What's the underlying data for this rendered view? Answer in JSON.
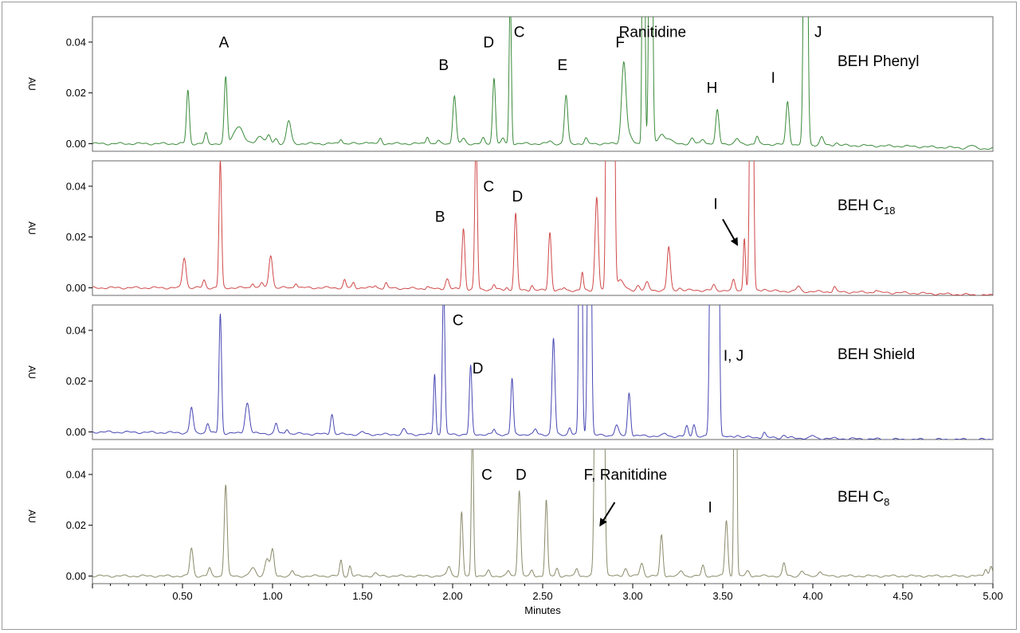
{
  "chart_data": {
    "type": "line",
    "xlabel": "Minutes",
    "x_ticks": [
      "0.50",
      "1.00",
      "1.50",
      "2.00",
      "2.50",
      "3.00",
      "3.50",
      "4.00",
      "4.50",
      "5.00"
    ],
    "xlim": [
      0.0,
      5.0
    ],
    "panels": [
      {
        "column_label": "BEH Phenyl",
        "column_sub": "",
        "ylabel": "AU",
        "y_ticks": [
          "0.00",
          "0.02",
          "0.04"
        ],
        "ylim": [
          -0.003,
          0.05
        ],
        "color": "#3a8a3a",
        "baseline": [
          [
            0.0,
            0.0
          ],
          [
            1.5,
            0.0
          ],
          [
            2.5,
            0.0
          ],
          [
            3.5,
            0.0
          ],
          [
            4.5,
            -0.001
          ],
          [
            5.0,
            -0.002
          ]
        ],
        "peaks": [
          [
            0.53,
            0.021,
            0.008
          ],
          [
            0.63,
            0.004,
            0.008
          ],
          [
            0.74,
            0.026,
            0.008
          ],
          [
            0.81,
            0.007,
            0.025
          ],
          [
            0.93,
            0.003,
            0.02
          ],
          [
            0.98,
            0.003,
            0.01
          ],
          [
            1.02,
            0.002,
            0.01
          ],
          [
            1.09,
            0.009,
            0.012
          ],
          [
            1.38,
            0.002,
            0.008
          ],
          [
            1.52,
            0.001,
            0.01
          ],
          [
            1.6,
            0.002,
            0.008
          ],
          [
            1.86,
            0.003,
            0.008
          ],
          [
            1.92,
            0.001,
            0.008
          ],
          [
            2.01,
            0.019,
            0.009
          ],
          [
            2.06,
            0.002,
            0.01
          ],
          [
            2.17,
            0.002,
            0.008
          ],
          [
            2.23,
            0.026,
            0.008
          ],
          [
            2.28,
            0.002,
            0.008
          ],
          [
            2.32,
            0.06,
            0.006
          ],
          [
            2.54,
            0.001,
            0.01
          ],
          [
            2.63,
            0.019,
            0.009
          ],
          [
            2.74,
            0.002,
            0.008
          ],
          [
            2.95,
            0.03,
            0.012
          ],
          [
            2.97,
            0.004,
            0.02
          ],
          [
            3.06,
            0.2,
            0.006
          ],
          [
            3.1,
            0.2,
            0.008
          ],
          [
            3.16,
            0.004,
            0.015
          ],
          [
            3.2,
            0.002,
            0.015
          ],
          [
            3.33,
            0.002,
            0.01
          ],
          [
            3.39,
            0.002,
            0.01
          ],
          [
            3.47,
            0.013,
            0.009
          ],
          [
            3.58,
            0.002,
            0.01
          ],
          [
            3.69,
            0.003,
            0.008
          ],
          [
            3.86,
            0.017,
            0.009
          ],
          [
            3.96,
            0.2,
            0.009
          ],
          [
            4.05,
            0.003,
            0.01
          ],
          [
            4.13,
            0.001,
            0.01
          ],
          [
            4.88,
            0.001,
            0.015
          ]
        ],
        "labels": [
          {
            "text": "A",
            "x": 0.73,
            "y": 0.038
          },
          {
            "text": "B",
            "x": 1.95,
            "y": 0.029
          },
          {
            "text": "D",
            "x": 2.2,
            "y": 0.038
          },
          {
            "text": "C",
            "x": 2.37,
            "y": 0.042
          },
          {
            "text": "E",
            "x": 2.61,
            "y": 0.029
          },
          {
            "text": "F",
            "x": 2.93,
            "y": 0.038
          },
          {
            "text": "Ranitidine",
            "x": 3.11,
            "y": 0.042
          },
          {
            "text": "H",
            "x": 3.44,
            "y": 0.02
          },
          {
            "text": "I",
            "x": 3.78,
            "y": 0.024
          },
          {
            "text": "J",
            "x": 4.03,
            "y": 0.042
          }
        ]
      },
      {
        "column_label": "BEH C",
        "column_sub": "18",
        "ylabel": "AU",
        "y_ticks": [
          "0.00",
          "0.02",
          "0.04"
        ],
        "ylim": [
          -0.003,
          0.05
        ],
        "color": "#d04848",
        "baseline": [
          [
            0.0,
            0.0
          ],
          [
            1.5,
            0.0
          ],
          [
            2.5,
            -0.001
          ],
          [
            3.5,
            -0.001
          ],
          [
            4.5,
            -0.002
          ],
          [
            5.0,
            -0.003
          ]
        ],
        "peaks": [
          [
            0.51,
            0.012,
            0.01
          ],
          [
            0.62,
            0.003,
            0.008
          ],
          [
            0.71,
            0.05,
            0.007
          ],
          [
            0.89,
            0.002,
            0.008
          ],
          [
            0.94,
            0.002,
            0.008
          ],
          [
            0.99,
            0.013,
            0.01
          ],
          [
            1.13,
            0.002,
            0.008
          ],
          [
            1.4,
            0.003,
            0.007
          ],
          [
            1.45,
            0.002,
            0.007
          ],
          [
            1.57,
            0.001,
            0.007
          ],
          [
            1.63,
            0.002,
            0.007
          ],
          [
            1.86,
            0.001,
            0.007
          ],
          [
            1.97,
            0.004,
            0.01
          ],
          [
            2.06,
            0.024,
            0.008
          ],
          [
            2.13,
            0.06,
            0.007
          ],
          [
            2.23,
            0.002,
            0.007
          ],
          [
            2.3,
            0.001,
            0.007
          ],
          [
            2.35,
            0.03,
            0.008
          ],
          [
            2.44,
            0.002,
            0.007
          ],
          [
            2.54,
            0.023,
            0.008
          ],
          [
            2.62,
            0.001,
            0.007
          ],
          [
            2.72,
            0.007,
            0.006
          ],
          [
            2.8,
            0.037,
            0.009
          ],
          [
            2.86,
            0.2,
            0.007
          ],
          [
            2.89,
            0.2,
            0.008
          ],
          [
            2.93,
            0.004,
            0.02
          ],
          [
            3.03,
            0.002,
            0.01
          ],
          [
            3.08,
            0.003,
            0.01
          ],
          [
            3.2,
            0.017,
            0.009
          ],
          [
            3.26,
            0.001,
            0.01
          ],
          [
            3.45,
            0.002,
            0.008
          ],
          [
            3.56,
            0.004,
            0.008
          ],
          [
            3.62,
            0.021,
            0.006
          ],
          [
            3.66,
            0.2,
            0.008
          ],
          [
            3.73,
            0.001,
            0.01
          ],
          [
            3.92,
            0.002,
            0.01
          ],
          [
            4.12,
            0.002,
            0.008
          ],
          [
            4.35,
            0.001,
            0.008
          ]
        ],
        "labels": [
          {
            "text": "B",
            "x": 1.93,
            "y": 0.026
          },
          {
            "text": "C",
            "x": 2.2,
            "y": 0.038
          },
          {
            "text": "D",
            "x": 2.36,
            "y": 0.034
          },
          {
            "text": "I",
            "x": 3.46,
            "y": 0.031
          }
        ],
        "arrows": [
          {
            "x1": 3.5,
            "y1": 0.027,
            "x2": 3.58,
            "y2": 0.017
          }
        ]
      },
      {
        "column_label": "BEH Shield",
        "column_sub": "",
        "ylabel": "AU",
        "y_ticks": [
          "0.00",
          "0.02",
          "0.04"
        ],
        "ylim": [
          -0.003,
          0.05
        ],
        "color": "#4646b4",
        "baseline": [
          [
            0.0,
            0.0
          ],
          [
            1.5,
            -0.001
          ],
          [
            2.5,
            -0.001
          ],
          [
            3.5,
            -0.002
          ],
          [
            4.5,
            -0.003
          ],
          [
            5.0,
            -0.003
          ]
        ],
        "peaks": [
          [
            0.55,
            0.01,
            0.009
          ],
          [
            0.64,
            0.004,
            0.008
          ],
          [
            0.71,
            0.047,
            0.007
          ],
          [
            0.86,
            0.012,
            0.012
          ],
          [
            1.02,
            0.004,
            0.008
          ],
          [
            1.08,
            0.002,
            0.008
          ],
          [
            1.33,
            0.008,
            0.008
          ],
          [
            1.5,
            0.001,
            0.01
          ],
          [
            1.73,
            0.002,
            0.01
          ],
          [
            1.9,
            0.024,
            0.006
          ],
          [
            1.95,
            0.06,
            0.007
          ],
          [
            2.1,
            0.027,
            0.007
          ],
          [
            2.23,
            0.002,
            0.007
          ],
          [
            2.33,
            0.022,
            0.007
          ],
          [
            2.46,
            0.002,
            0.008
          ],
          [
            2.56,
            0.038,
            0.008
          ],
          [
            2.65,
            0.003,
            0.008
          ],
          [
            2.71,
            0.2,
            0.007
          ],
          [
            2.76,
            0.2,
            0.008
          ],
          [
            2.91,
            0.004,
            0.01
          ],
          [
            2.98,
            0.017,
            0.008
          ],
          [
            3.18,
            0.001,
            0.01
          ],
          [
            3.3,
            0.004,
            0.008
          ],
          [
            3.34,
            0.005,
            0.008
          ],
          [
            3.44,
            0.2,
            0.009
          ],
          [
            3.47,
            0.2,
            0.008
          ],
          [
            3.58,
            0.001,
            0.01
          ],
          [
            3.73,
            0.002,
            0.008
          ],
          [
            3.84,
            0.001,
            0.01
          ],
          [
            4.0,
            0.001,
            0.01
          ]
        ],
        "labels": [
          {
            "text": "C",
            "x": 2.03,
            "y": 0.042
          },
          {
            "text": "D",
            "x": 2.14,
            "y": 0.023
          },
          {
            "text": "I, J",
            "x": 3.56,
            "y": 0.028
          }
        ]
      },
      {
        "column_label": "BEH C",
        "column_sub": "8",
        "ylabel": "AU",
        "y_ticks": [
          "0.00",
          "0.02",
          "0.04"
        ],
        "ylim": [
          -0.003,
          0.05
        ],
        "color": "#8a8a6a",
        "baseline": [
          [
            0.0,
            0.0
          ],
          [
            1.5,
            0.0
          ],
          [
            2.5,
            0.0
          ],
          [
            3.5,
            0.0
          ],
          [
            4.5,
            0.0
          ],
          [
            5.0,
            0.0
          ]
        ],
        "peaks": [
          [
            0.55,
            0.011,
            0.009
          ],
          [
            0.65,
            0.003,
            0.008
          ],
          [
            0.74,
            0.036,
            0.008
          ],
          [
            0.89,
            0.003,
            0.015
          ],
          [
            0.97,
            0.007,
            0.012
          ],
          [
            1.0,
            0.01,
            0.009
          ],
          [
            1.11,
            0.002,
            0.008
          ],
          [
            1.38,
            0.006,
            0.007
          ],
          [
            1.43,
            0.004,
            0.007
          ],
          [
            1.57,
            0.001,
            0.01
          ],
          [
            1.98,
            0.004,
            0.01
          ],
          [
            2.05,
            0.025,
            0.007
          ],
          [
            2.11,
            0.06,
            0.006
          ],
          [
            2.2,
            0.002,
            0.008
          ],
          [
            2.31,
            0.002,
            0.008
          ],
          [
            2.37,
            0.034,
            0.008
          ],
          [
            2.44,
            0.002,
            0.008
          ],
          [
            2.52,
            0.03,
            0.007
          ],
          [
            2.58,
            0.003,
            0.008
          ],
          [
            2.69,
            0.003,
            0.008
          ],
          [
            2.8,
            0.2,
            0.009
          ],
          [
            2.83,
            0.2,
            0.01
          ],
          [
            2.96,
            0.003,
            0.01
          ],
          [
            3.05,
            0.005,
            0.01
          ],
          [
            3.16,
            0.016,
            0.008
          ],
          [
            3.27,
            0.002,
            0.01
          ],
          [
            3.39,
            0.004,
            0.008
          ],
          [
            3.52,
            0.022,
            0.008
          ],
          [
            3.57,
            0.2,
            0.006
          ],
          [
            3.64,
            0.002,
            0.01
          ],
          [
            3.84,
            0.005,
            0.008
          ],
          [
            3.94,
            0.002,
            0.01
          ],
          [
            4.04,
            0.002,
            0.01
          ],
          [
            4.96,
            0.003,
            0.008
          ],
          [
            4.99,
            0.004,
            0.008
          ]
        ],
        "labels": [
          {
            "text": "C",
            "x": 2.19,
            "y": 0.038
          },
          {
            "text": "D",
            "x": 2.38,
            "y": 0.038
          },
          {
            "text": "F, Ranitidine",
            "x": 2.96,
            "y": 0.038
          },
          {
            "text": "I",
            "x": 3.43,
            "y": 0.025
          }
        ],
        "arrows": [
          {
            "x1": 2.9,
            "y1": 0.029,
            "x2": 2.82,
            "y2": 0.02
          }
        ]
      }
    ]
  }
}
